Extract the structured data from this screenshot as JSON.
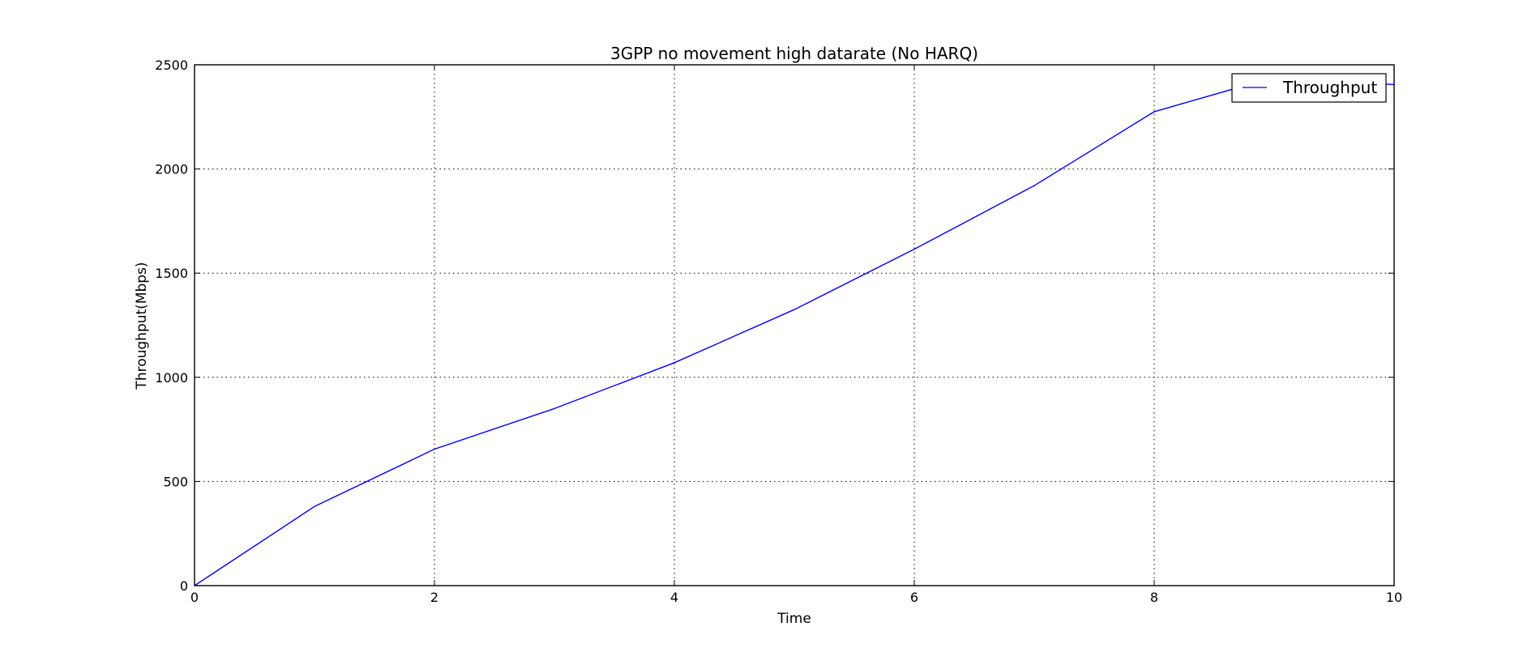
{
  "chart_data": {
    "type": "line",
    "title": "3GPP no movement high datarate (No HARQ)",
    "xlabel": "Time",
    "ylabel": "Throughput(Mbps)",
    "xlim": [
      0,
      10
    ],
    "ylim": [
      0,
      2500
    ],
    "xticks": [
      0,
      2,
      4,
      6,
      8,
      10
    ],
    "yticks": [
      0,
      500,
      1000,
      1500,
      2000,
      2500
    ],
    "grid": true,
    "legend_position": "top-right",
    "series": [
      {
        "name": "Throughput",
        "color": "#0000ff",
        "x": [
          0,
          1,
          2,
          3,
          4,
          5,
          6,
          7,
          8,
          9,
          10
        ],
        "y": [
          0,
          380,
          655,
          850,
          1070,
          1325,
          1615,
          1920,
          2275,
          2440,
          2405
        ]
      }
    ]
  }
}
